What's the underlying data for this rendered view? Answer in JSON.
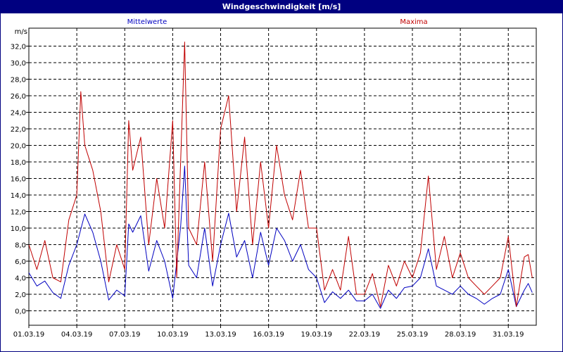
{
  "window": {
    "title": "Windgeschwindigkeit [m/s]"
  },
  "chart_data": {
    "type": "line",
    "title": "Windgeschwindigkeit [m/s]",
    "ylabel": "m/s",
    "xlabel": "",
    "x_start": "01.03.19",
    "x_end": "01.04.19",
    "ylim": [
      -1,
      34
    ],
    "y_ticks": [
      "0,0",
      "2,0",
      "4,0",
      "6,0",
      "8,0",
      "10,0",
      "12,0",
      "14,0",
      "16,0",
      "18,0",
      "20,0",
      "22,0",
      "24,0",
      "26,0",
      "28,0",
      "30,0",
      "32,0"
    ],
    "x_ticks": [
      "01.03.19",
      "04.03.19",
      "07.03.19",
      "10.03.19",
      "13.03.19",
      "16.03.19",
      "19.03.19",
      "22.03.19",
      "25.03.19",
      "28.03.19",
      "31.03.19"
    ],
    "grid": true,
    "legend_placement": "top",
    "series": [
      {
        "name": "Mittelwerte",
        "color": "#0000c0",
        "points": [
          [
            "01.03.19 00:00",
            4.6
          ],
          [
            "01.03.19 12:00",
            3.0
          ],
          [
            "02.03.19 00:00",
            3.6
          ],
          [
            "02.03.19 12:00",
            2.2
          ],
          [
            "03.03.19 00:00",
            1.5
          ],
          [
            "03.03.19 12:00",
            5.5
          ],
          [
            "04.03.19 00:00",
            8.0
          ],
          [
            "04.03.19 12:00",
            11.7
          ],
          [
            "05.03.19 00:00",
            9.5
          ],
          [
            "05.03.19 12:00",
            6.0
          ],
          [
            "06.03.19 00:00",
            1.3
          ],
          [
            "06.03.19 12:00",
            2.5
          ],
          [
            "07.03.19 00:00",
            1.8
          ],
          [
            "07.03.19 06:00",
            10.5
          ],
          [
            "07.03.19 12:00",
            9.5
          ],
          [
            "08.03.19 00:00",
            11.5
          ],
          [
            "08.03.19 12:00",
            4.8
          ],
          [
            "09.03.19 00:00",
            8.5
          ],
          [
            "09.03.19 12:00",
            6.0
          ],
          [
            "10.03.19 00:00",
            1.5
          ],
          [
            "10.03.19 12:00",
            10.2
          ],
          [
            "10.03.19 18:00",
            17.5
          ],
          [
            "11.03.19 00:00",
            5.5
          ],
          [
            "11.03.19 12:00",
            4.0
          ],
          [
            "12.03.19 00:00",
            10.0
          ],
          [
            "12.03.19 12:00",
            3.0
          ],
          [
            "13.03.19 00:00",
            8.0
          ],
          [
            "13.03.19 12:00",
            11.8
          ],
          [
            "14.03.19 00:00",
            6.5
          ],
          [
            "14.03.19 12:00",
            8.5
          ],
          [
            "15.03.19 00:00",
            4.0
          ],
          [
            "15.03.19 12:00",
            9.5
          ],
          [
            "16.03.19 00:00",
            5.5
          ],
          [
            "16.03.19 12:00",
            10.0
          ],
          [
            "17.03.19 00:00",
            8.5
          ],
          [
            "17.03.19 12:00",
            6.0
          ],
          [
            "18.03.19 00:00",
            8.0
          ],
          [
            "18.03.19 12:00",
            5.0
          ],
          [
            "19.03.19 00:00",
            4.0
          ],
          [
            "19.03.19 12:00",
            1.0
          ],
          [
            "20.03.19 00:00",
            2.3
          ],
          [
            "20.03.19 12:00",
            1.5
          ],
          [
            "21.03.19 00:00",
            2.5
          ],
          [
            "21.03.19 12:00",
            1.2
          ],
          [
            "22.03.19 00:00",
            1.2
          ],
          [
            "22.03.19 12:00",
            2.0
          ],
          [
            "23.03.19 00:00",
            0.3
          ],
          [
            "23.03.19 12:00",
            2.5
          ],
          [
            "24.03.19 00:00",
            1.5
          ],
          [
            "24.03.19 12:00",
            2.8
          ],
          [
            "25.03.19 00:00",
            3.0
          ],
          [
            "25.03.19 12:00",
            4.0
          ],
          [
            "26.03.19 00:00",
            7.5
          ],
          [
            "26.03.19 12:00",
            3.0
          ],
          [
            "27.03.19 00:00",
            2.5
          ],
          [
            "27.03.19 12:00",
            2.0
          ],
          [
            "28.03.19 00:00",
            3.0
          ],
          [
            "28.03.19 12:00",
            2.0
          ],
          [
            "29.03.19 00:00",
            1.5
          ],
          [
            "29.03.19 12:00",
            0.8
          ],
          [
            "30.03.19 00:00",
            1.5
          ],
          [
            "30.03.19 12:00",
            2.0
          ],
          [
            "31.03.19 00:00",
            5.0
          ],
          [
            "31.03.19 12:00",
            0.5
          ],
          [
            "01.04.19 00:00",
            2.5
          ],
          [
            "01.04.19 06:00",
            3.3
          ],
          [
            "01.04.19 12:00",
            2.2
          ]
        ]
      },
      {
        "name": "Maxima",
        "color": "#c00000",
        "points": [
          [
            "01.03.19 00:00",
            8.0
          ],
          [
            "01.03.19 12:00",
            5.0
          ],
          [
            "02.03.19 00:00",
            8.5
          ],
          [
            "02.03.19 12:00",
            4.0
          ],
          [
            "03.03.19 00:00",
            3.5
          ],
          [
            "03.03.19 12:00",
            11.0
          ],
          [
            "04.03.19 00:00",
            14.0
          ],
          [
            "04.03.19 06:00",
            26.5
          ],
          [
            "04.03.19 12:00",
            20.0
          ],
          [
            "05.03.19 00:00",
            17.0
          ],
          [
            "05.03.19 12:00",
            12.0
          ],
          [
            "06.03.19 00:00",
            3.5
          ],
          [
            "06.03.19 12:00",
            8.0
          ],
          [
            "07.03.19 00:00",
            5.0
          ],
          [
            "07.03.19 06:00",
            23.0
          ],
          [
            "07.03.19 12:00",
            17.0
          ],
          [
            "08.03.19 00:00",
            21.0
          ],
          [
            "08.03.19 12:00",
            8.0
          ],
          [
            "09.03.19 00:00",
            16.0
          ],
          [
            "09.03.19 12:00",
            10.0
          ],
          [
            "10.03.19 00:00",
            23.0
          ],
          [
            "10.03.19 06:00",
            4.0
          ],
          [
            "10.03.19 18:00",
            32.5
          ],
          [
            "11.03.19 00:00",
            10.0
          ],
          [
            "11.03.19 12:00",
            8.0
          ],
          [
            "12.03.19 00:00",
            18.0
          ],
          [
            "12.03.19 12:00",
            6.0
          ],
          [
            "13.03.19 00:00",
            22.0
          ],
          [
            "13.03.19 12:00",
            26.0
          ],
          [
            "14.03.19 00:00",
            12.0
          ],
          [
            "14.03.19 12:00",
            21.0
          ],
          [
            "15.03.19 00:00",
            8.0
          ],
          [
            "15.03.19 12:00",
            18.0
          ],
          [
            "16.03.19 00:00",
            10.0
          ],
          [
            "16.03.19 12:00",
            20.0
          ],
          [
            "17.03.19 00:00",
            14.0
          ],
          [
            "17.03.19 12:00",
            11.0
          ],
          [
            "18.03.19 00:00",
            17.0
          ],
          [
            "18.03.19 12:00",
            10.0
          ],
          [
            "19.03.19 00:00",
            10.0
          ],
          [
            "19.03.19 12:00",
            2.5
          ],
          [
            "20.03.19 00:00",
            5.0
          ],
          [
            "20.03.19 12:00",
            2.5
          ],
          [
            "21.03.19 00:00",
            9.0
          ],
          [
            "21.03.19 12:00",
            2.0
          ],
          [
            "22.03.19 00:00",
            2.0
          ],
          [
            "22.03.19 12:00",
            4.5
          ],
          [
            "23.03.19 00:00",
            0.5
          ],
          [
            "23.03.19 12:00",
            5.5
          ],
          [
            "24.03.19 00:00",
            3.0
          ],
          [
            "24.03.19 12:00",
            6.0
          ],
          [
            "25.03.19 00:00",
            4.0
          ],
          [
            "25.03.19 12:00",
            7.0
          ],
          [
            "26.03.19 00:00",
            16.3
          ],
          [
            "26.03.19 12:00",
            5.0
          ],
          [
            "27.03.19 00:00",
            9.0
          ],
          [
            "27.03.19 12:00",
            4.0
          ],
          [
            "28.03.19 00:00",
            7.0
          ],
          [
            "28.03.19 12:00",
            4.0
          ],
          [
            "29.03.19 00:00",
            3.0
          ],
          [
            "29.03.19 12:00",
            2.0
          ],
          [
            "30.03.19 00:00",
            3.0
          ],
          [
            "30.03.19 12:00",
            4.0
          ],
          [
            "31.03.19 00:00",
            9.0
          ],
          [
            "31.03.19 12:00",
            0.5
          ],
          [
            "01.04.19 00:00",
            6.5
          ],
          [
            "01.04.19 06:00",
            6.8
          ],
          [
            "01.04.19 12:00",
            4.0
          ]
        ]
      }
    ]
  },
  "colors": {
    "frame": "#000080",
    "axes": "#000000",
    "grid": "#000000",
    "title_text": "#ffffff"
  }
}
